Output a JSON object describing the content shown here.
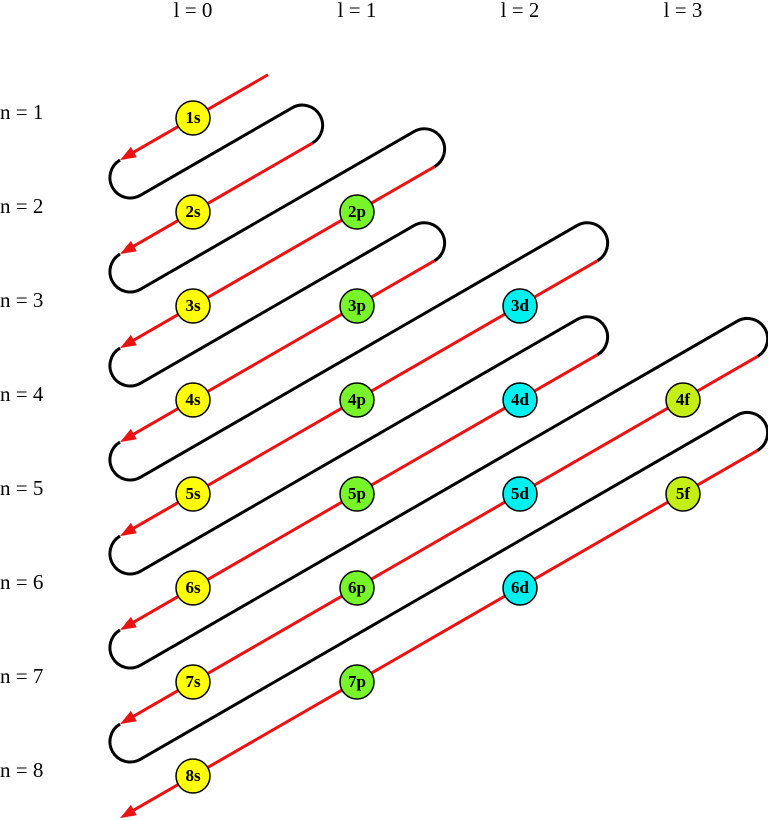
{
  "headers": [
    "l = 0",
    "l = 1",
    "l = 2",
    "l = 3"
  ],
  "rows": [
    "n = 1",
    "n = 2",
    "n = 3",
    "n = 4",
    "n = 5",
    "n = 6",
    "n = 7",
    "n = 8"
  ],
  "orbitals": [
    [
      "1s"
    ],
    [
      "2s",
      "2p"
    ],
    [
      "3s",
      "3p",
      "3d"
    ],
    [
      "4s",
      "4p",
      "4d",
      "4f"
    ],
    [
      "5s",
      "5p",
      "5d",
      "5f"
    ],
    [
      "6s",
      "6p",
      "6d"
    ],
    [
      "7s",
      "7p"
    ],
    [
      "8s"
    ]
  ]
}
